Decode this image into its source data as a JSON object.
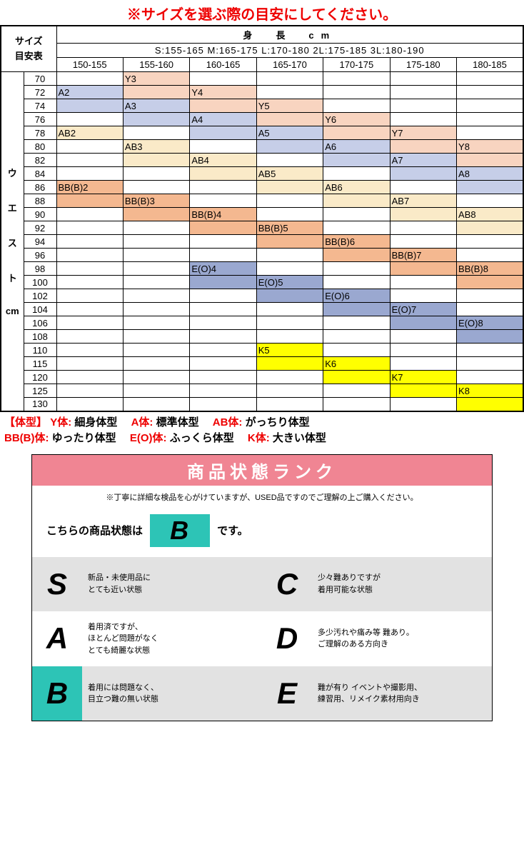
{
  "note_top": "※サイズを選ぶ際の目安にしてください。",
  "header": {
    "guide_label_1": "サイズ",
    "guide_label_2": "目安表",
    "height_title": "身　長　cm",
    "size_line": "S:155-165  M:165-175  L:170-180  2L:175-185  3L:180-190",
    "ranges": [
      "150-155",
      "155-160",
      "160-165",
      "165-170",
      "170-175",
      "175-180",
      "180-185"
    ]
  },
  "side": {
    "waist_label": [
      "ウ",
      "エ",
      "ス",
      "ト",
      "cm"
    ],
    "waist_nums": [
      "70",
      "72",
      "74",
      "76",
      "78",
      "80",
      "82",
      "84",
      "86",
      "88",
      "90",
      "92",
      "94",
      "96",
      "98",
      "100",
      "102",
      "104",
      "106",
      "108",
      "110",
      "115",
      "120",
      "125",
      "130"
    ]
  },
  "cells": {
    "Y3": "Y3",
    "Y4": "Y4",
    "Y5": "Y5",
    "Y6": "Y6",
    "Y7": "Y7",
    "Y8": "Y8",
    "A2": "A2",
    "A3": "A3",
    "A4": "A4",
    "A5": "A5",
    "A6": "A6",
    "A7": "A7",
    "A8": "A8",
    "AB2": "AB2",
    "AB3": "AB3",
    "AB4": "AB4",
    "AB5": "AB5",
    "AB6": "AB6",
    "AB7": "AB7",
    "AB8": "AB8",
    "BB2": "BB(B)2",
    "BB3": "BB(B)3",
    "BB4": "BB(B)4",
    "BB5": "BB(B)5",
    "BB6": "BB(B)6",
    "BB7": "BB(B)7",
    "BB8": "BB(B)8",
    "EO4": "E(O)4",
    "EO5": "E(O)5",
    "EO6": "E(O)6",
    "EO7": "E(O)7",
    "EO8": "E(O)8",
    "K5": "K5",
    "K6": "K6",
    "K7": "K7",
    "K8": "K8"
  },
  "legend": {
    "prefix": "【体型】",
    "items": [
      {
        "code": "Y体:",
        "txt": "細身体型"
      },
      {
        "code": "A体:",
        "txt": "標準体型"
      },
      {
        "code": "AB体:",
        "txt": "がっちり体型"
      },
      {
        "code": "BB(B)体:",
        "txt": "ゆったり体型"
      },
      {
        "code": "E(O)体:",
        "txt": "ふっくら体型"
      },
      {
        "code": "K体:",
        "txt": "大きい体型"
      }
    ]
  },
  "rank": {
    "title": "商品状態ランク",
    "note": "※丁寧に詳細な検品を心がけていますが、USED品ですのでご理解の上ご購入ください。",
    "current_l": "こちらの商品状態は",
    "current_badge": "B",
    "current_r": "です。",
    "grades": [
      {
        "g": "S",
        "d": "新品・未使用品に\nとても近い状態"
      },
      {
        "g": "C",
        "d": "少々難ありですが\n着用可能な状態"
      },
      {
        "g": "A",
        "d": "着用済ですが、\nほとんど問題がなく\nとても綺麗な状態"
      },
      {
        "g": "D",
        "d": "多少汚れや痛み等 難あり。\nご理解のある方向き"
      },
      {
        "g": "B",
        "d": "着用には問題なく、\n目立つ難の無い状態"
      },
      {
        "g": "E",
        "d": "難が有り イベントや撮影用、\n練習用、リメイク素材用向き"
      }
    ]
  },
  "colors": {
    "pink": "#f8d4c0",
    "blue": "#c6cee8",
    "cream": "#faeac8",
    "orange": "#f4b890",
    "navy": "#9aa8d0",
    "yellow": "#ffff00",
    "red": "#e00",
    "rank_title": "#f08593",
    "badge": "#2dc4b6",
    "grid_bg": "#e2e2e2"
  }
}
